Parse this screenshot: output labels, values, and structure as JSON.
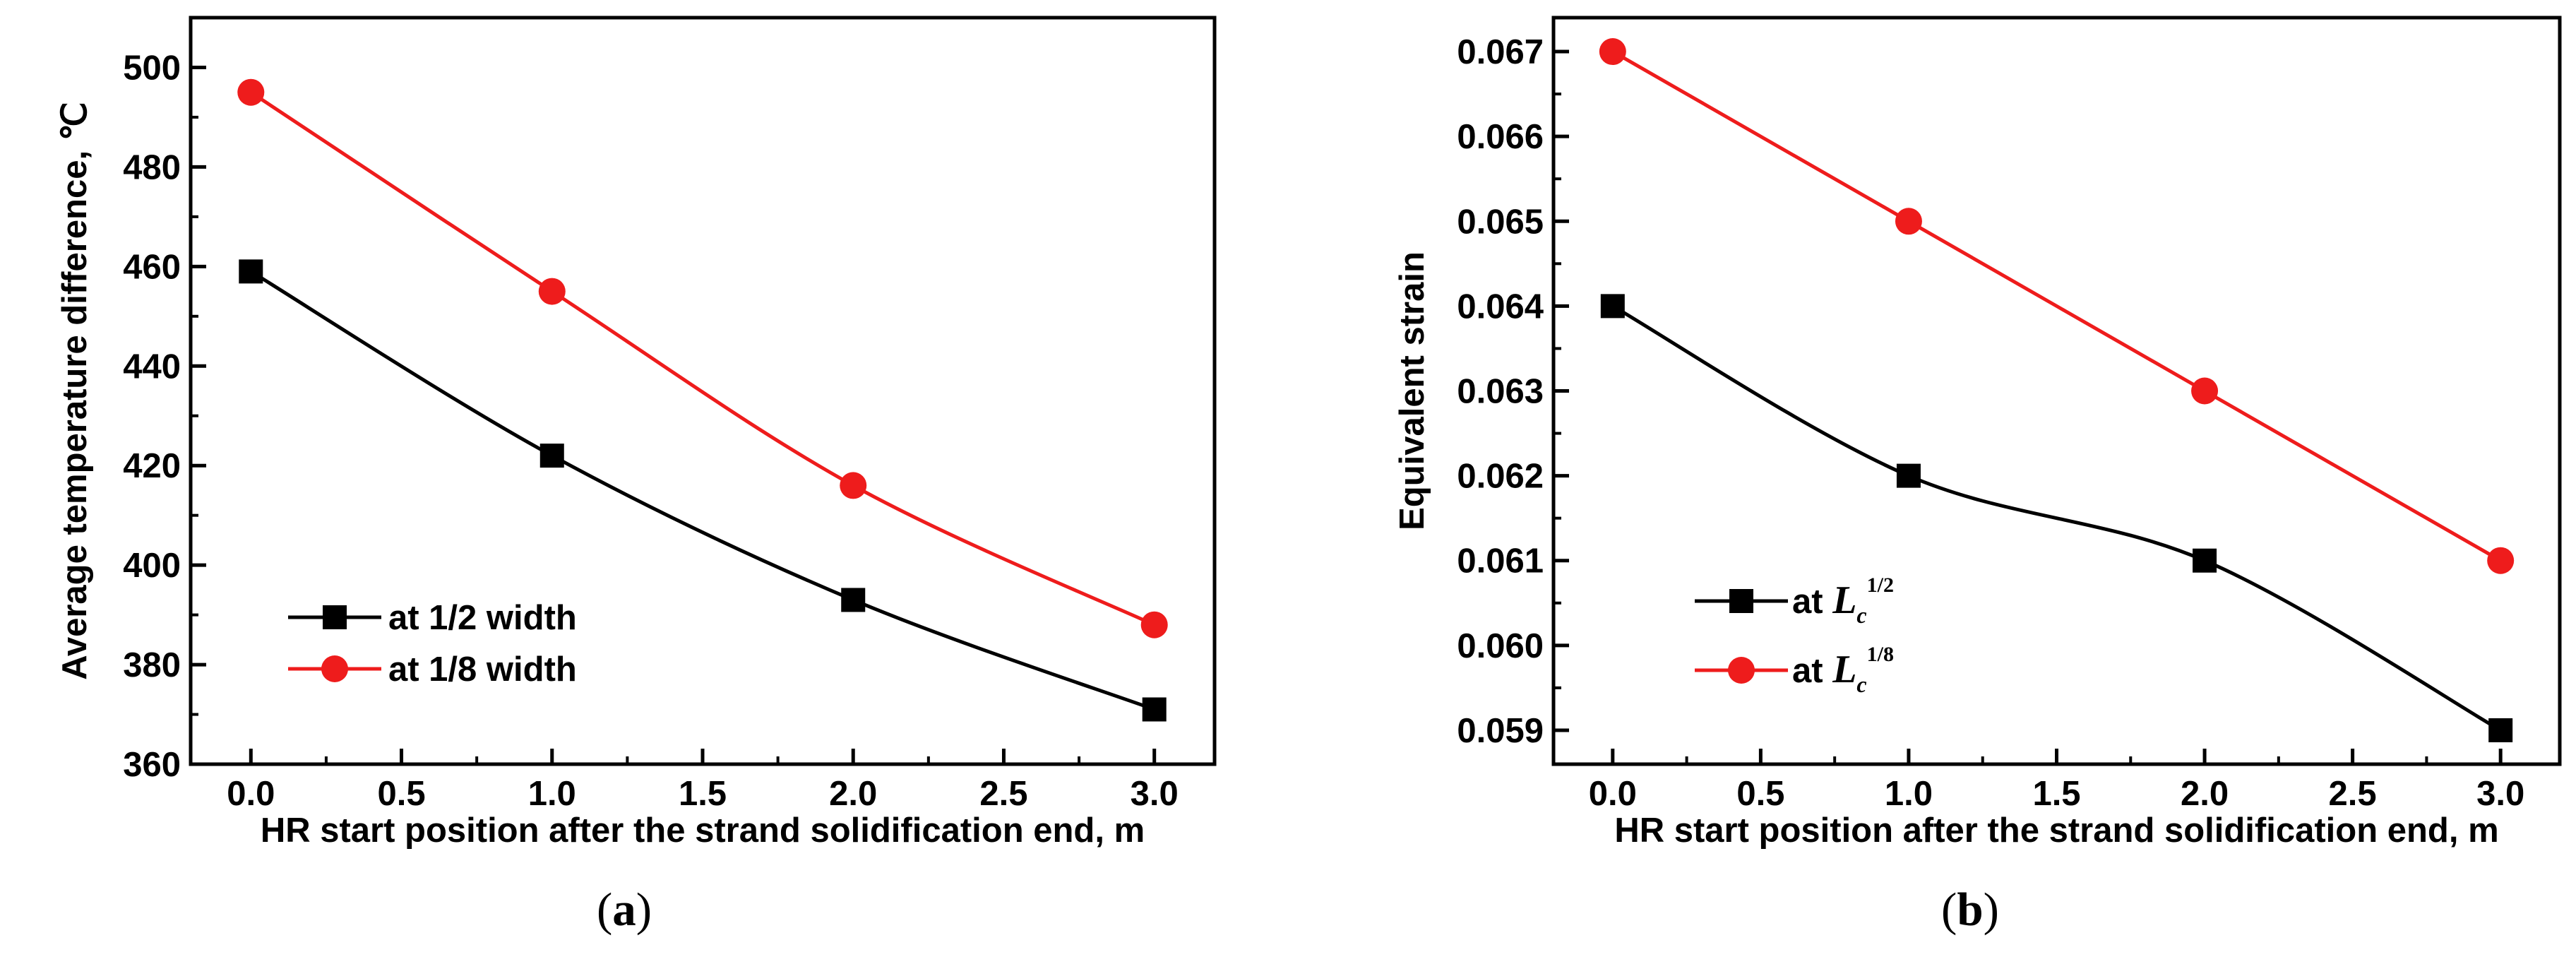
{
  "chart_data": [
    {
      "type": "line",
      "panel": "a",
      "caption_letter": "a",
      "title": "",
      "xlabel": "HR start position after the strand solidification end, m",
      "ylabel": "Average temperature difference, ℃",
      "xlim": [
        -0.2,
        3.2
      ],
      "ylim": [
        360,
        510
      ],
      "xticks": [
        0.0,
        0.5,
        1.0,
        1.5,
        2.0,
        2.5,
        3.0
      ],
      "xtick_labels": [
        "0.0",
        "0.5",
        "1.0",
        "1.5",
        "2.0",
        "2.5",
        "3.0"
      ],
      "yticks": [
        360,
        380,
        400,
        420,
        440,
        460,
        480,
        500
      ],
      "ytick_labels": [
        "360",
        "380",
        "400",
        "420",
        "440",
        "460",
        "480",
        "500"
      ],
      "legend_position": "bottom-left",
      "series": [
        {
          "name": "at 1/2 width",
          "color": "#000000",
          "marker": "square",
          "x": [
            0,
            1,
            2,
            3
          ],
          "values": [
            459,
            422,
            393,
            371
          ]
        },
        {
          "name": "at 1/8 width",
          "color": "#ee1c1c",
          "marker": "circle",
          "x": [
            0,
            1,
            2,
            3
          ],
          "values": [
            495,
            455,
            416,
            388
          ]
        }
      ]
    },
    {
      "type": "line",
      "panel": "b",
      "caption_letter": "b",
      "title": "",
      "xlabel": "HR start position after the strand solidification end, m",
      "ylabel": "Equivalent strain",
      "xlim": [
        -0.2,
        3.2
      ],
      "ylim": [
        0.0586,
        0.0674
      ],
      "xticks": [
        0.0,
        0.5,
        1.0,
        1.5,
        2.0,
        2.5,
        3.0
      ],
      "xtick_labels": [
        "0.0",
        "0.5",
        "1.0",
        "1.5",
        "2.0",
        "2.5",
        "3.0"
      ],
      "yticks": [
        0.059,
        0.06,
        0.061,
        0.062,
        0.063,
        0.064,
        0.065,
        0.066,
        0.067
      ],
      "ytick_labels": [
        "0.059",
        "0.060",
        "0.061",
        "0.062",
        "0.063",
        "0.064",
        "0.065",
        "0.066",
        "0.067"
      ],
      "legend_position": "bottom-left",
      "series": [
        {
          "name": "at L_c^1/2",
          "legend_prefix": "at",
          "legend_var": "L",
          "legend_sub": "c",
          "legend_sup": "1/2",
          "color": "#000000",
          "marker": "square",
          "x": [
            0,
            1,
            2,
            3
          ],
          "values": [
            0.064,
            0.062,
            0.061,
            0.059
          ]
        },
        {
          "name": "at L_c^1/8",
          "legend_prefix": "at",
          "legend_var": "L",
          "legend_sub": "c",
          "legend_sup": "1/8",
          "color": "#ee1c1c",
          "marker": "circle",
          "x": [
            0,
            1,
            2,
            3
          ],
          "values": [
            0.067,
            0.065,
            0.063,
            0.061
          ]
        }
      ]
    }
  ]
}
